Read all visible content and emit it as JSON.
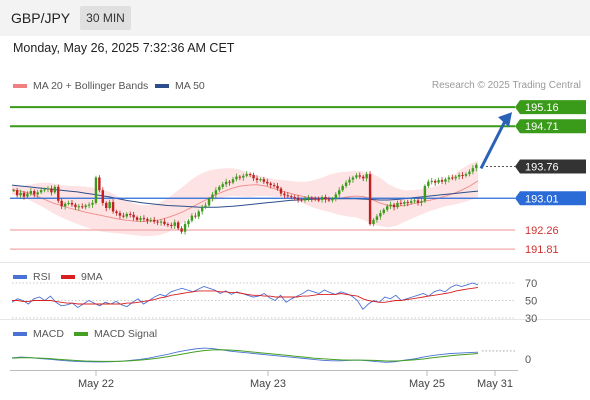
{
  "header": {
    "symbol": "GBP/JPY",
    "timeframe": "30 MIN"
  },
  "datetime": "Monday, May 26, 2025 7:32:36 AM CET",
  "credit": "Research © 2025 Trading Central",
  "legend": {
    "bollinger": {
      "label": "MA 20 + Bollinger Bands",
      "color": "#f08080"
    },
    "ma50": {
      "label": "MA 50",
      "color": "#2c4f8c"
    },
    "rsi": {
      "label": "RSI",
      "color": "#4a72d6"
    },
    "rsi_ma": {
      "label": "9MA",
      "color": "#d92020"
    },
    "macd": {
      "label": "MACD",
      "color": "#4a72d6"
    },
    "macd_signal": {
      "label": "MACD Signal",
      "color": "#44a020"
    }
  },
  "colors": {
    "green": "#3a9a1a",
    "blue": "#2a6bd8",
    "red": "#f0a8a8",
    "dark": "#333333",
    "candle_up": "#3a9a1a",
    "candle_down": "#c02020"
  },
  "chart_data": [
    {
      "type": "candlestick",
      "title": "",
      "ylim": [
        191.6,
        195.4
      ],
      "x_ticks": [
        "May 22",
        "May 23",
        "May 25",
        "May 31"
      ],
      "price_levels": [
        {
          "value": 195.16,
          "label": "195.16",
          "kind": "target"
        },
        {
          "value": 194.71,
          "label": "194.71",
          "kind": "target"
        },
        {
          "value": 193.76,
          "label": "193.76",
          "kind": "current"
        },
        {
          "value": 193.01,
          "label": "193.01",
          "kind": "pivot"
        },
        {
          "value": 192.26,
          "label": "192.26",
          "kind": "support"
        },
        {
          "value": 191.81,
          "label": "191.81",
          "kind": "support"
        }
      ],
      "close": [
        193.2,
        193.08,
        193.14,
        193.05,
        193.12,
        193.18,
        193.1,
        193.15,
        193.2,
        193.22,
        193.24,
        193.15,
        193.28,
        192.95,
        192.82,
        192.88,
        192.9,
        192.86,
        192.8,
        192.82,
        192.8,
        192.84,
        192.86,
        192.9,
        193.5,
        193.2,
        192.9,
        192.78,
        192.92,
        192.7,
        192.66,
        192.6,
        192.58,
        192.64,
        192.62,
        192.56,
        192.5,
        192.54,
        192.52,
        192.48,
        192.5,
        192.46,
        192.44,
        192.46,
        192.4,
        192.38,
        192.36,
        192.44,
        192.3,
        192.22,
        192.4,
        192.48,
        192.6,
        192.58,
        192.7,
        192.8,
        192.84,
        193.0,
        193.1,
        193.2,
        193.28,
        193.34,
        193.4,
        193.38,
        193.46,
        193.52,
        193.5,
        193.54,
        193.58,
        193.56,
        193.48,
        193.44,
        193.46,
        193.4,
        193.36,
        193.32,
        193.3,
        193.24,
        193.12,
        193.08,
        193.06,
        193.04,
        193.02,
        192.98,
        192.96,
        193.0,
        193.02,
        193.0,
        192.98,
        192.97,
        193.04,
        192.98,
        192.96,
        193.0,
        193.1,
        193.2,
        193.3,
        193.38,
        193.45,
        193.5,
        193.55,
        193.52,
        193.48,
        193.58,
        192.4,
        192.5,
        192.58,
        192.66,
        192.74,
        192.82,
        192.86,
        192.8,
        192.9,
        192.88,
        192.92,
        192.9,
        192.94,
        192.96,
        192.9,
        192.94,
        193.3,
        193.4,
        193.42,
        193.38,
        193.44,
        193.4,
        193.46,
        193.5,
        193.48,
        193.52,
        193.56,
        193.54,
        193.58,
        193.64,
        193.72,
        193.8
      ],
      "ma50": [
        193.32,
        193.3,
        193.28,
        193.26,
        193.24,
        193.22,
        193.2,
        193.18,
        193.16,
        193.13,
        193.1,
        193.07,
        193.04,
        193.0,
        192.96,
        192.93,
        192.9,
        192.88,
        192.86,
        192.84,
        192.83,
        192.82,
        192.81,
        192.8,
        192.8,
        192.8,
        192.81,
        192.82,
        192.84,
        192.86,
        192.88,
        192.9,
        192.92,
        192.94,
        192.96,
        192.97,
        192.98,
        192.99,
        193.0,
        193.0,
        193.0,
        193.0,
        193.0,
        192.99,
        192.98,
        192.97,
        192.97,
        192.98,
        193.0,
        193.02,
        193.04,
        193.06,
        193.08,
        193.1,
        193.12,
        193.14,
        193.16,
        193.18
      ],
      "ma20": [
        193.22,
        193.18,
        193.14,
        193.06,
        192.98,
        192.9,
        192.84,
        192.78,
        192.73,
        192.68,
        192.64,
        192.6,
        192.56,
        192.52,
        192.49,
        192.47,
        192.46,
        192.47,
        192.5,
        192.55,
        192.62,
        192.7,
        192.8,
        192.9,
        193.0,
        193.1,
        193.18,
        193.25,
        193.3,
        193.32,
        193.33,
        193.3,
        193.24,
        193.18,
        193.13,
        193.08,
        193.04,
        193.02,
        193.0,
        193.0,
        193.01,
        193.04,
        193.06,
        193.05,
        192.98,
        192.9,
        192.84,
        192.82,
        192.84,
        192.88,
        192.92,
        192.96,
        193.0,
        193.06,
        193.12,
        193.2,
        193.3,
        193.42
      ],
      "bb_upper": [
        193.3,
        193.3,
        193.32,
        193.36,
        193.38,
        193.36,
        193.32,
        193.3,
        193.3,
        193.28,
        193.26,
        193.22,
        193.15,
        193.05,
        192.96,
        192.88,
        192.84,
        192.85,
        192.9,
        193.0,
        193.15,
        193.3,
        193.46,
        193.58,
        193.66,
        193.7,
        193.72,
        193.72,
        193.68,
        193.6,
        193.55,
        193.5,
        193.46,
        193.44,
        193.42,
        193.4,
        193.4,
        193.44,
        193.5,
        193.58,
        193.62,
        193.64,
        193.66,
        193.64,
        193.6,
        193.5,
        193.35,
        193.25,
        193.2,
        193.2,
        193.22,
        193.26,
        193.3,
        193.4,
        193.55,
        193.7,
        193.82,
        193.9
      ],
      "bb_lower": [
        193.1,
        193.04,
        192.98,
        192.88,
        192.78,
        192.66,
        192.56,
        192.48,
        192.4,
        192.33,
        192.27,
        192.22,
        192.2,
        192.18,
        192.16,
        192.14,
        192.12,
        192.12,
        192.14,
        192.2,
        192.3,
        192.44,
        192.6,
        192.75,
        192.88,
        192.98,
        193.04,
        193.06,
        193.05,
        193.04,
        193.06,
        193.06,
        193.05,
        193.04,
        193.02,
        192.95,
        192.85,
        192.78,
        192.72,
        192.68,
        192.62,
        192.58,
        192.56,
        192.5,
        192.4,
        192.35,
        192.32,
        192.36,
        192.45,
        192.54,
        192.62,
        192.7,
        192.76,
        192.82,
        192.86,
        192.9,
        192.96,
        193.04
      ],
      "forecast": {
        "from": 193.76,
        "to": 195.16
      }
    },
    {
      "type": "line",
      "title": "",
      "ylim": [
        30,
        70
      ],
      "y_ticks": [
        30,
        50,
        70
      ],
      "series": [
        {
          "name": "RSI",
          "values": [
            48,
            52,
            50,
            46,
            52,
            54,
            50,
            55,
            48,
            44,
            45,
            47,
            42,
            46,
            50,
            47,
            44,
            48,
            46,
            49,
            45,
            43,
            48,
            52,
            46,
            50,
            54,
            57,
            55,
            60,
            62,
            64,
            62,
            60,
            63,
            66,
            64,
            62,
            58,
            61,
            57,
            60,
            58,
            56,
            54,
            55,
            58,
            53,
            50,
            56,
            48,
            52,
            55,
            58,
            62,
            60,
            58,
            62,
            59,
            57,
            60,
            58,
            55,
            50,
            40,
            46,
            50,
            48,
            54,
            52,
            56,
            50,
            52,
            54,
            56,
            58,
            55,
            60,
            62,
            60,
            65,
            68,
            66,
            68,
            70,
            68
          ]
        },
        {
          "name": "9MA",
          "values": [
            50,
            50,
            49,
            49,
            50,
            50,
            50,
            50,
            49,
            48,
            47,
            47,
            46,
            46,
            46,
            46,
            46,
            46,
            46,
            46,
            46,
            47,
            47,
            48,
            49,
            50,
            51,
            53,
            54,
            56,
            57,
            58,
            59,
            60,
            61,
            61,
            61,
            61,
            60,
            60,
            59,
            59,
            58,
            57,
            56,
            56,
            55,
            55,
            54,
            54,
            54,
            54,
            54,
            55,
            55,
            56,
            57,
            57,
            57,
            57,
            58,
            57,
            56,
            55,
            52,
            50,
            49,
            48,
            48,
            49,
            50,
            50,
            51,
            52,
            53,
            54,
            55,
            56,
            57,
            58,
            59,
            61,
            62,
            63,
            64,
            65
          ]
        }
      ]
    },
    {
      "type": "line",
      "title": "",
      "ylim": [
        -0.4,
        0.75
      ],
      "y_ticks": [
        0
      ],
      "series": [
        {
          "name": "MACD",
          "values": [
            0.05,
            0.08,
            0.06,
            0.02,
            -0.01,
            -0.05,
            -0.08,
            -0.11,
            -0.12,
            -0.13,
            -0.13,
            -0.12,
            -0.1,
            -0.06,
            -0.02,
            0.04,
            0.12,
            0.2,
            0.3,
            0.38,
            0.44,
            0.48,
            0.46,
            0.4,
            0.34,
            0.3,
            0.26,
            0.22,
            0.18,
            0.14,
            0.1,
            0.06,
            0.02,
            -0.02,
            -0.06,
            -0.08,
            -0.08,
            -0.06,
            -0.05,
            -0.08,
            -0.12,
            -0.15,
            -0.12,
            -0.05,
            0.0,
            0.08,
            0.15,
            0.2,
            0.24,
            0.26,
            0.28,
            0.3
          ]
        },
        {
          "name": "MACD Signal",
          "values": [
            0.04,
            0.05,
            0.05,
            0.04,
            0.02,
            -0.01,
            -0.04,
            -0.07,
            -0.09,
            -0.1,
            -0.11,
            -0.11,
            -0.1,
            -0.08,
            -0.05,
            -0.01,
            0.04,
            0.1,
            0.17,
            0.24,
            0.31,
            0.37,
            0.4,
            0.41,
            0.39,
            0.36,
            0.32,
            0.28,
            0.24,
            0.2,
            0.16,
            0.12,
            0.08,
            0.04,
            0.01,
            -0.02,
            -0.04,
            -0.05,
            -0.05,
            -0.06,
            -0.07,
            -0.09,
            -0.09,
            -0.07,
            -0.04,
            0.0,
            0.05,
            0.1,
            0.14,
            0.18,
            0.21,
            0.24
          ]
        }
      ]
    }
  ]
}
